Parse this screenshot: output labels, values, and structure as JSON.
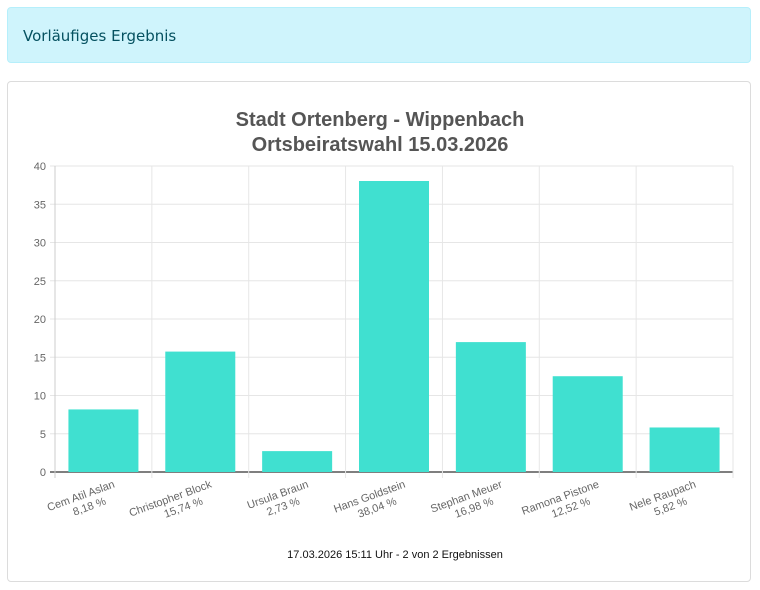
{
  "alert": {
    "text": "Vorläufiges Ergebnis"
  },
  "chart_data": {
    "type": "bar",
    "title": [
      "Stadt Ortenberg - Wippenbach",
      "Ortsbeiratswahl 15.03.2026"
    ],
    "categories": [
      "Cem Atil Aslan",
      "Christopher Block",
      "Ursula Braun",
      "Hans Goldstein",
      "Stephan Meuer",
      "Ramona Pistone",
      "Nele Raupach"
    ],
    "percent_labels": [
      "8,18 %",
      "15,74 %",
      "2,73 %",
      "38,04 %",
      "16,98 %",
      "12,52 %",
      "5,82 %"
    ],
    "values": [
      8.18,
      15.74,
      2.73,
      38.04,
      16.98,
      12.52,
      5.82
    ],
    "ylim": [
      0,
      40
    ],
    "yticks": [
      0,
      5,
      10,
      15,
      20,
      25,
      30,
      35,
      40
    ],
    "grid": true,
    "legend": "none",
    "bar_color": "#40e0d0",
    "footer": "17.03.2026 15:11 Uhr - 2 von 2 Ergebnissen"
  }
}
